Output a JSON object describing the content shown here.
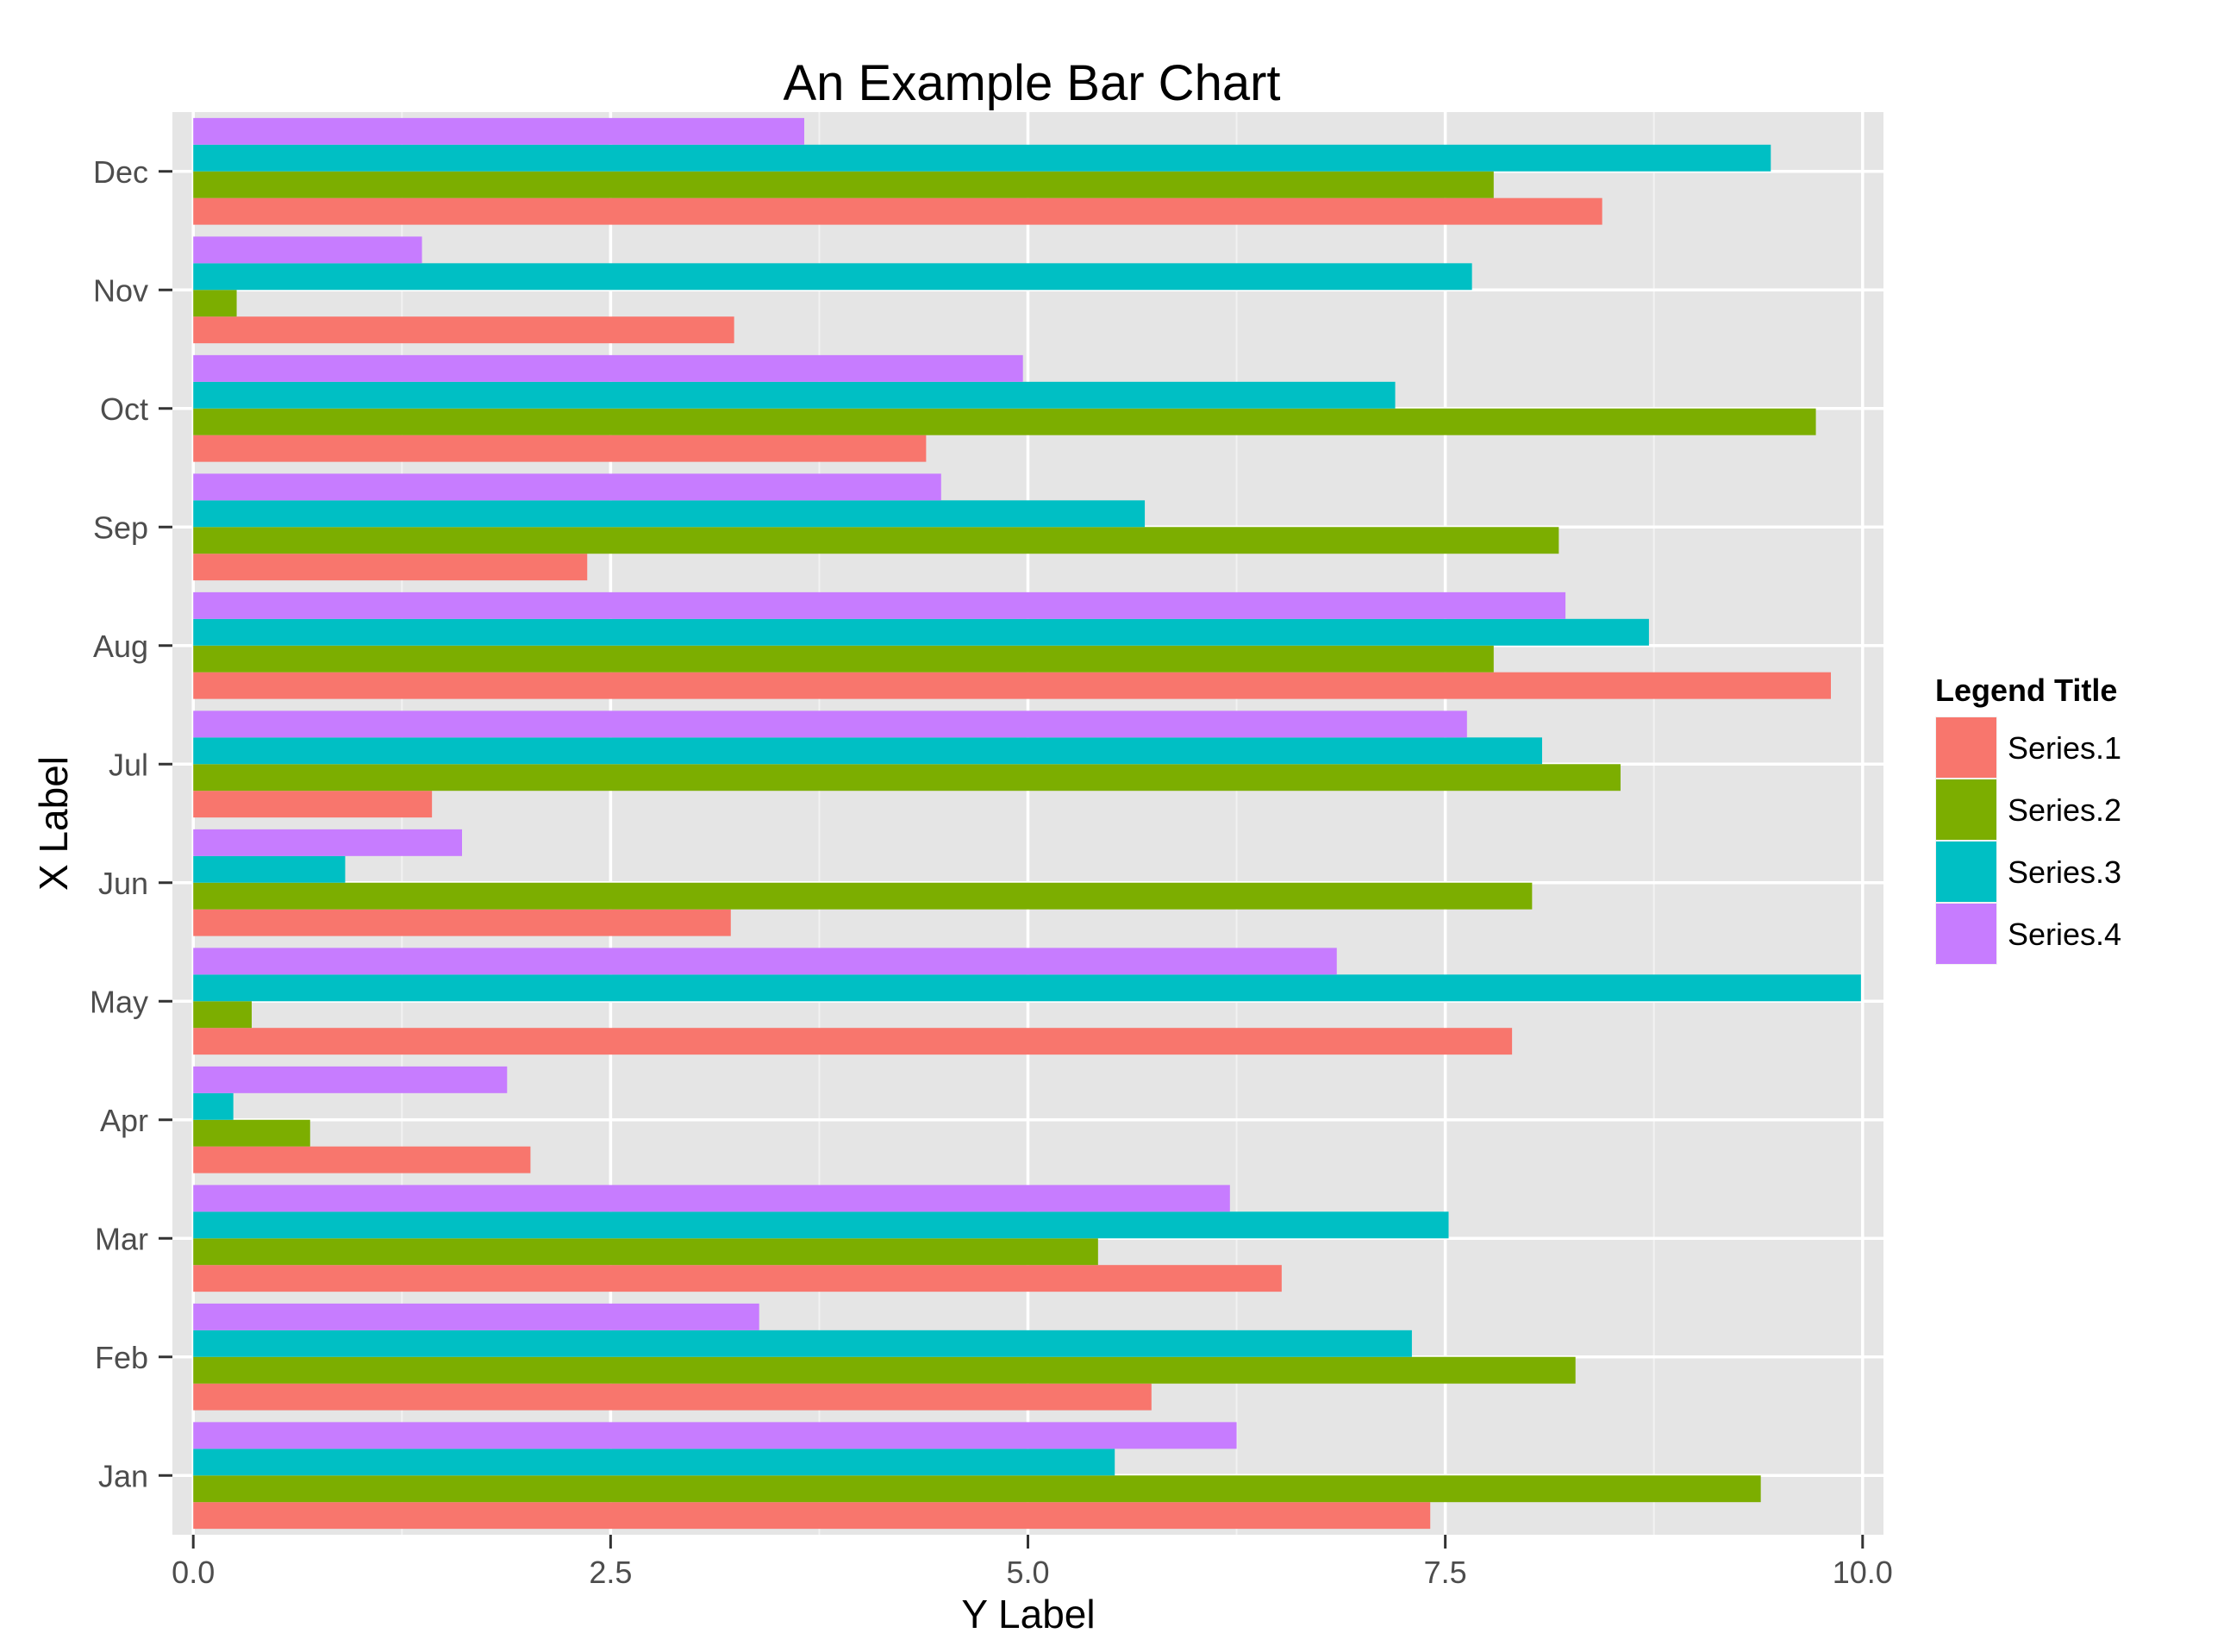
{
  "chart_data": {
    "type": "bar",
    "orientation": "horizontal",
    "title": "An Example Bar Chart",
    "xlabel": "Y Label",
    "ylabel": "X Label",
    "xlim": [
      -0.125,
      10.125
    ],
    "xticks": [
      0.0,
      2.5,
      5.0,
      7.5,
      10.0
    ],
    "xtick_labels": [
      "0.0",
      "2.5",
      "5.0",
      "7.5",
      "10.0"
    ],
    "categories": [
      "Jan",
      "Feb",
      "Mar",
      "Apr",
      "May",
      "Jun",
      "Jul",
      "Aug",
      "Sep",
      "Oct",
      "Nov",
      "Dec"
    ],
    "grid": true,
    "legend": {
      "title": "Legend Title",
      "position": "right"
    },
    "series": [
      {
        "name": "Series.1",
        "color": "#F8766D",
        "values": [
          7.41,
          5.74,
          6.52,
          2.02,
          7.9,
          3.22,
          1.43,
          9.81,
          2.36,
          4.39,
          3.24,
          8.44
        ]
      },
      {
        "name": "Series.2",
        "color": "#7CAE00",
        "values": [
          9.39,
          8.28,
          5.42,
          0.7,
          0.35,
          8.02,
          8.55,
          7.79,
          8.18,
          9.72,
          0.26,
          7.79
        ]
      },
      {
        "name": "Series.3",
        "color": "#00BFC4",
        "values": [
          5.52,
          7.3,
          7.52,
          0.24,
          9.99,
          0.91,
          8.08,
          8.72,
          5.7,
          7.2,
          7.66,
          9.45
        ]
      },
      {
        "name": "Series.4",
        "color": "#C77CFF",
        "values": [
          6.25,
          3.39,
          6.21,
          1.88,
          6.85,
          1.61,
          7.63,
          8.22,
          4.48,
          4.97,
          1.37,
          3.66
        ]
      }
    ]
  },
  "colors": {
    "panel_background": "#E5E5E5",
    "grid_major": "#FFFFFF",
    "grid_minor": "#F2F2F2",
    "tick_text": "#4D4D4D"
  }
}
